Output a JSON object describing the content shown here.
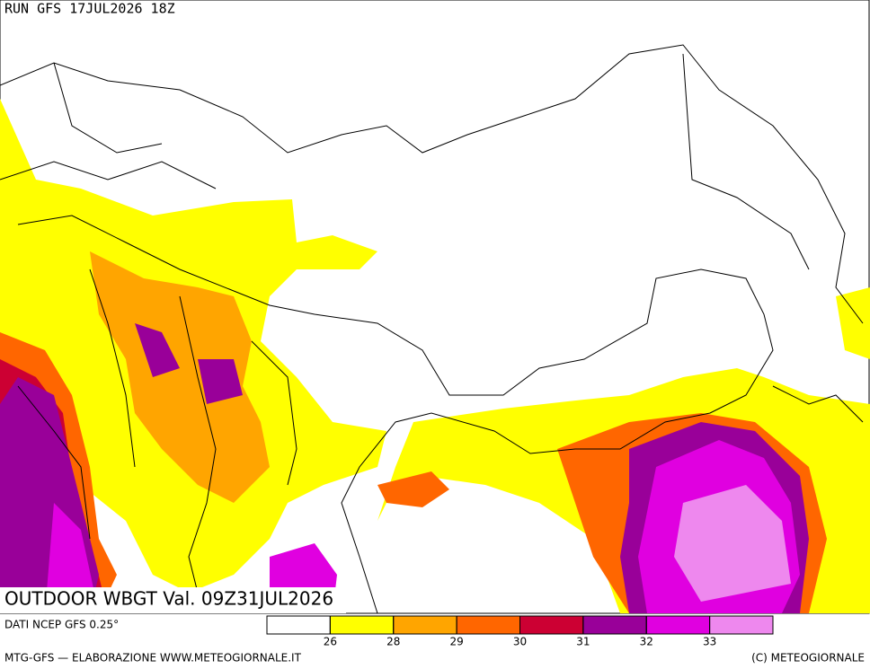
{
  "header": {
    "run": "RUN GFS 17JUL2026 18Z"
  },
  "map": {
    "title": "OUTDOOR WBGT Val. 09Z31JUL2026"
  },
  "legend": {
    "source": "DATI NCEP GFS 0.25°",
    "colors": [
      "#ffffff",
      "#ffff00",
      "#ffa500",
      "#ff6600",
      "#cc0033",
      "#990099",
      "#e000e0",
      "#ee88ee"
    ],
    "ticks": [
      26,
      28,
      29,
      30,
      31,
      32,
      33
    ]
  },
  "footer": {
    "left": "MTG-GFS — ELABORAZIONE WWW.METEOGIORNALE.IT",
    "right": "(C) METEOGIORNALE"
  }
}
